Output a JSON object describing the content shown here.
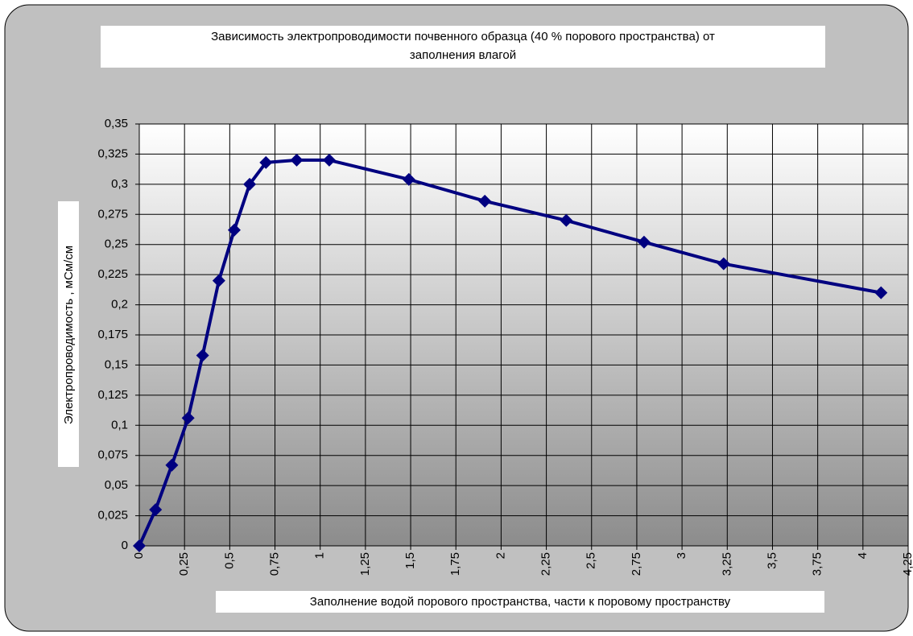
{
  "chart_data": {
    "type": "line",
    "title": [
      "Зависимость электропроводимости почвенного образца (40 % порового пространства) от",
      "заполнения влагой"
    ],
    "x_label": "Заполнение водой порового пространства, части к поровому пространству",
    "y_label": "Электропроводимость , мСм/см",
    "x": [
      0,
      0.09,
      0.18,
      0.27,
      0.35,
      0.44,
      0.525,
      0.61,
      0.7,
      0.87,
      1.05,
      1.49,
      1.91,
      2.36,
      2.79,
      3.23,
      4.1
    ],
    "series": [
      {
        "name": "Электропроводимость",
        "color": "#000080",
        "values": [
          0,
          0.03,
          0.067,
          0.106,
          0.158,
          0.22,
          0.262,
          0.3,
          0.318,
          0.32,
          0.32,
          0.304,
          0.286,
          0.27,
          0.252,
          0.234,
          0.21
        ]
      }
    ],
    "xlim": [
      0,
      4.25
    ],
    "xticks": [
      0,
      {
        "value": 0.25,
        "label": "0,25"
      },
      {
        "value": 0.5,
        "label": "0,5"
      },
      {
        "value": 0.75,
        "label": "0,75"
      },
      1,
      {
        "value": 1.25,
        "label": "1,25"
      },
      {
        "value": 1.5,
        "label": "1,5"
      },
      {
        "value": 1.75,
        "label": "1,75"
      },
      2,
      {
        "value": 2.25,
        "label": "2,25"
      },
      {
        "value": 2.5,
        "label": "2,5"
      },
      {
        "value": 2.75,
        "label": "2,75"
      },
      3,
      {
        "value": 3.25,
        "label": "3,25"
      },
      {
        "value": 3.5,
        "label": "3,5"
      },
      {
        "value": 3.75,
        "label": "3,75"
      },
      4,
      {
        "value": 4.25,
        "label": "4,25"
      }
    ],
    "ylim": [
      0,
      0.35
    ],
    "yticks": [
      0,
      {
        "value": 0.025,
        "label": "0,025"
      },
      {
        "value": 0.05,
        "label": "0,05"
      },
      {
        "value": 0.075,
        "label": "0,075"
      },
      {
        "value": 0.1,
        "label": "0,1"
      },
      {
        "value": 0.125,
        "label": "0,125"
      },
      {
        "value": 0.15,
        "label": "0,15"
      },
      {
        "value": 0.175,
        "label": "0,175"
      },
      {
        "value": 0.2,
        "label": "0,2"
      },
      {
        "value": 0.225,
        "label": "0,225"
      },
      {
        "value": 0.25,
        "label": "0,25"
      },
      {
        "value": 0.275,
        "label": "0,275"
      },
      {
        "value": 0.3,
        "label": "0,3"
      },
      {
        "value": 0.325,
        "label": "0,325"
      },
      {
        "value": 0.35,
        "label": "0,35"
      }
    ],
    "grid": true
  }
}
